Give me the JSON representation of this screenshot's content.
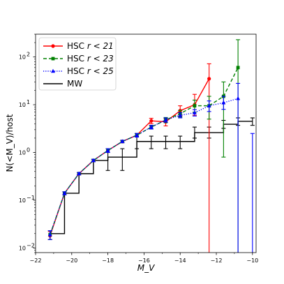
{
  "chart_data": {
    "type": "line",
    "title": "",
    "xlabel": "M_V",
    "ylabel": "N(<M_V)/host",
    "xlim": [
      -22,
      -9.8
    ],
    "ylim": [
      0.008,
      300
    ],
    "yscale": "log",
    "grid": false,
    "legend_position": "top-left",
    "x_ticks": [
      -22,
      -20,
      -18,
      -16,
      -14,
      -12,
      -10
    ],
    "x_tick_labels": [
      "−22",
      "−20",
      "−18",
      "−16",
      "−14",
      "−12",
      "−10"
    ],
    "y_ticks": [
      0.01,
      0.1,
      1,
      10,
      100
    ],
    "y_tick_labels": [
      "10",
      "10",
      "10",
      "10",
      "10"
    ],
    "y_tick_exponents": [
      "−2",
      "−1",
      "0",
      "1",
      "2"
    ],
    "series": [
      {
        "name": "HSC r<21",
        "name_main": "HSC ",
        "name_math": "r < 21",
        "color": "#ff0000",
        "linestyle": "solid",
        "marker": "circle",
        "points": [
          {
            "x": -21.2,
            "y": 0.018,
            "lo": 0.015,
            "hi": 0.022
          },
          {
            "x": -20.4,
            "y": 0.14,
            "lo": 0.13,
            "hi": 0.15
          },
          {
            "x": -19.6,
            "y": 0.36,
            "lo": 0.34,
            "hi": 0.38
          },
          {
            "x": -18.8,
            "y": 0.68,
            "lo": 0.64,
            "hi": 0.72
          },
          {
            "x": -18.0,
            "y": 1.1,
            "lo": 1.0,
            "hi": 1.2
          },
          {
            "x": -17.2,
            "y": 1.7,
            "lo": 1.6,
            "hi": 1.8
          },
          {
            "x": -16.4,
            "y": 2.3,
            "lo": 2.1,
            "hi": 2.5
          },
          {
            "x": -15.6,
            "y": 4.6,
            "lo": 4.0,
            "hi": 5.2
          },
          {
            "x": -14.8,
            "y": 4.4,
            "lo": 3.6,
            "hi": 5.1
          },
          {
            "x": -14.0,
            "y": 7.5,
            "lo": 5.8,
            "hi": 9.5
          },
          {
            "x": -13.2,
            "y": 10.0,
            "lo": 6.0,
            "hi": 16.5
          },
          {
            "x": -12.4,
            "y": 35.0,
            "lo": 0.001,
            "hi": 72.0
          }
        ]
      },
      {
        "name": "HSC r<23",
        "name_main": "HSC ",
        "name_math": "r < 23",
        "color": "#008000",
        "linestyle": "dashed",
        "marker": "square",
        "points": [
          {
            "x": -21.2,
            "y": 0.019,
            "lo": 0.015,
            "hi": 0.023
          },
          {
            "x": -20.4,
            "y": 0.14,
            "lo": 0.13,
            "hi": 0.15
          },
          {
            "x": -19.6,
            "y": 0.36,
            "lo": 0.34,
            "hi": 0.38
          },
          {
            "x": -18.8,
            "y": 0.68,
            "lo": 0.64,
            "hi": 0.72
          },
          {
            "x": -18.0,
            "y": 1.1,
            "lo": 1.0,
            "hi": 1.2
          },
          {
            "x": -17.2,
            "y": 1.7,
            "lo": 1.6,
            "hi": 1.8
          },
          {
            "x": -16.4,
            "y": 2.3,
            "lo": 2.1,
            "hi": 2.5
          },
          {
            "x": -15.6,
            "y": 3.4,
            "lo": 3.1,
            "hi": 3.7
          },
          {
            "x": -14.8,
            "y": 4.8,
            "lo": 4.2,
            "hi": 5.4
          },
          {
            "x": -14.0,
            "y": 6.5,
            "lo": 5.5,
            "hi": 7.6
          },
          {
            "x": -13.2,
            "y": 9.5,
            "lo": 7.0,
            "hi": 12.5
          },
          {
            "x": -12.4,
            "y": 9.5,
            "lo": 5.0,
            "hi": 15.0
          },
          {
            "x": -11.6,
            "y": 15.0,
            "lo": 0.8,
            "hi": 30.0
          },
          {
            "x": -10.8,
            "y": 60.0,
            "lo": 0.001,
            "hi": 230.0
          }
        ]
      },
      {
        "name": "HSC r<25",
        "name_main": "HSC ",
        "name_math": "r < 25",
        "color": "#0000ff",
        "linestyle": "dotted",
        "marker": "triangle",
        "points": [
          {
            "x": -21.2,
            "y": 0.019,
            "lo": 0.015,
            "hi": 0.023
          },
          {
            "x": -20.4,
            "y": 0.14,
            "lo": 0.13,
            "hi": 0.15
          },
          {
            "x": -19.6,
            "y": 0.36,
            "lo": 0.34,
            "hi": 0.38
          },
          {
            "x": -18.8,
            "y": 0.68,
            "lo": 0.64,
            "hi": 0.72
          },
          {
            "x": -18.0,
            "y": 1.1,
            "lo": 1.0,
            "hi": 1.2
          },
          {
            "x": -17.2,
            "y": 1.7,
            "lo": 1.6,
            "hi": 1.8
          },
          {
            "x": -16.4,
            "y": 2.3,
            "lo": 2.1,
            "hi": 2.5
          },
          {
            "x": -15.6,
            "y": 3.4,
            "lo": 3.1,
            "hi": 3.7
          },
          {
            "x": -14.8,
            "y": 4.8,
            "lo": 4.3,
            "hi": 5.3
          },
          {
            "x": -14.0,
            "y": 6.0,
            "lo": 5.3,
            "hi": 6.8
          },
          {
            "x": -13.2,
            "y": 6.8,
            "lo": 5.8,
            "hi": 7.9
          },
          {
            "x": -12.4,
            "y": 9.5,
            "lo": 7.2,
            "hi": 12.0
          },
          {
            "x": -11.6,
            "y": 11.0,
            "lo": 8.0,
            "hi": 15.0
          },
          {
            "x": -10.8,
            "y": 13.5,
            "lo": 0.001,
            "hi": 28.0
          },
          {
            "x": -10.0,
            "y": null,
            "lo": 0.001,
            "hi": 2.5
          }
        ]
      },
      {
        "name": "MW",
        "name_main": "MW",
        "name_math": "",
        "color": "#000000",
        "linestyle": "steps",
        "marker": "none",
        "steps": [
          {
            "x": -21.2,
            "y": 0.02
          },
          {
            "x": -20.4,
            "y": 0.14
          },
          {
            "x": -19.6,
            "y": 0.36
          },
          {
            "x": -18.8,
            "y": 0.68
          },
          {
            "x": -18.0,
            "y": 0.8
          },
          {
            "x": -17.2,
            "y": 0.8
          },
          {
            "x": -16.4,
            "y": 1.7
          },
          {
            "x": -15.6,
            "y": 1.7
          },
          {
            "x": -14.8,
            "y": 1.7
          },
          {
            "x": -14.0,
            "y": 1.7
          },
          {
            "x": -13.2,
            "y": 2.6
          },
          {
            "x": -12.4,
            "y": 2.6
          },
          {
            "x": -11.6,
            "y": 3.9
          },
          {
            "x": -10.8,
            "y": 4.5
          },
          {
            "x": -10.0,
            "y": 4.5
          }
        ],
        "errorbars": [
          {
            "x": -18.0,
            "y": 0.8,
            "lo": 0.42,
            "hi": 1.2
          },
          {
            "x": -17.2,
            "y": 0.8,
            "lo": 0.42,
            "hi": 1.2
          },
          {
            "x": -16.4,
            "y": 1.7,
            "lo": 1.2,
            "hi": 2.2
          },
          {
            "x": -15.6,
            "y": 1.7,
            "lo": 1.2,
            "hi": 2.2
          },
          {
            "x": -14.8,
            "y": 1.7,
            "lo": 1.2,
            "hi": 2.2
          },
          {
            "x": -14.0,
            "y": 1.7,
            "lo": 1.2,
            "hi": 2.2
          },
          {
            "x": -13.2,
            "y": 2.6,
            "lo": 2.0,
            "hi": 3.4
          },
          {
            "x": -12.4,
            "y": 2.6,
            "lo": 2.0,
            "hi": 3.4
          },
          {
            "x": -11.6,
            "y": 3.9,
            "lo": 3.2,
            "hi": 4.7
          },
          {
            "x": -10.8,
            "y": 4.5,
            "lo": 3.7,
            "hi": 5.3
          },
          {
            "x": -10.0,
            "y": 4.5,
            "lo": 3.7,
            "hi": 5.3
          }
        ]
      }
    ]
  }
}
